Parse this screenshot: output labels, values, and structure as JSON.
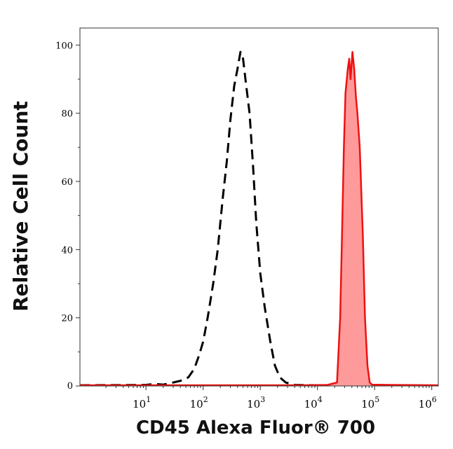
{
  "chart_data": {
    "type": "area",
    "xlabel": "CD45 Alexa Fluor® 700",
    "ylabel": "Relative Cell Count",
    "x_scale": "log",
    "xlim": [
      0.7,
      1300000
    ],
    "ylim": [
      0,
      105
    ],
    "x_ticks": [
      {
        "base": "10",
        "exp": "1",
        "value": 10
      },
      {
        "base": "10",
        "exp": "2",
        "value": 100
      },
      {
        "base": "10",
        "exp": "3",
        "value": 1000
      },
      {
        "base": "10",
        "exp": "4",
        "value": 10000
      },
      {
        "base": "10",
        "exp": "5",
        "value": 100000
      },
      {
        "base": "10",
        "exp": "6",
        "value": 1000000
      }
    ],
    "y_ticks": [
      {
        "label": "0",
        "value": 0
      },
      {
        "label": "20",
        "value": 20
      },
      {
        "label": "40",
        "value": 40
      },
      {
        "label": "60",
        "value": 60
      },
      {
        "label": "80",
        "value": 80
      },
      {
        "label": "100",
        "value": 100
      }
    ],
    "grid": false,
    "legend": "none",
    "series": [
      {
        "style": "dashed",
        "color": "#000000",
        "fill": false,
        "points": [
          [
            0.7,
            0.2
          ],
          [
            10,
            0.3
          ],
          [
            14,
            0.6
          ],
          [
            20,
            0.4
          ],
          [
            30,
            1.0
          ],
          [
            40,
            1.5
          ],
          [
            55,
            2.5
          ],
          [
            70,
            5
          ],
          [
            85,
            9
          ],
          [
            100,
            13
          ],
          [
            120,
            20
          ],
          [
            150,
            30
          ],
          [
            180,
            40
          ],
          [
            220,
            55
          ],
          [
            260,
            66
          ],
          [
            300,
            78
          ],
          [
            350,
            88
          ],
          [
            400,
            93
          ],
          [
            450,
            98
          ],
          [
            500,
            96
          ],
          [
            550,
            90
          ],
          [
            650,
            80
          ],
          [
            750,
            64
          ],
          [
            850,
            48
          ],
          [
            1000,
            33
          ],
          [
            1200,
            23
          ],
          [
            1500,
            13
          ],
          [
            1800,
            6
          ],
          [
            2200,
            2.5
          ],
          [
            2800,
            1.0
          ],
          [
            4000,
            0.3
          ],
          [
            10000,
            0.2
          ]
        ]
      },
      {
        "style": "solid",
        "color": "#ee1111",
        "fill": true,
        "fill_color": "#ff9a9a",
        "points": [
          [
            0.7,
            0.2
          ],
          [
            5000,
            0.2
          ],
          [
            15000,
            0.3
          ],
          [
            22000,
            1
          ],
          [
            25000,
            20
          ],
          [
            27000,
            45
          ],
          [
            29000,
            70
          ],
          [
            31000,
            86
          ],
          [
            34000,
            93
          ],
          [
            36000,
            96
          ],
          [
            38000,
            90
          ],
          [
            41000,
            98
          ],
          [
            44000,
            93
          ],
          [
            47000,
            85
          ],
          [
            50000,
            80
          ],
          [
            55000,
            70
          ],
          [
            62000,
            45
          ],
          [
            68000,
            20
          ],
          [
            75000,
            6
          ],
          [
            82000,
            1
          ],
          [
            90000,
            0.4
          ],
          [
            200000,
            0.3
          ],
          [
            1300000,
            0.2
          ]
        ]
      }
    ]
  }
}
